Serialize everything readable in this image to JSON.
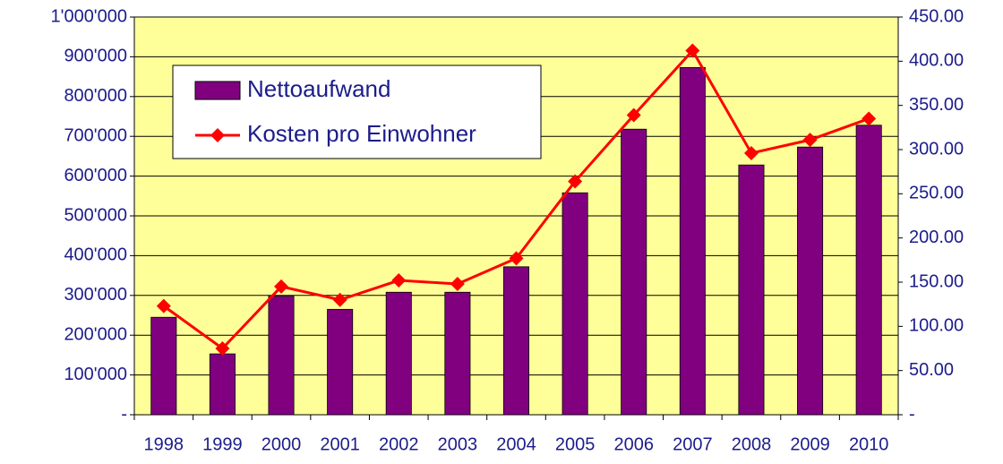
{
  "chart_data": {
    "type": "bar_line",
    "categories": [
      "1998",
      "1999",
      "2000",
      "2001",
      "2002",
      "2003",
      "2004",
      "2005",
      "2006",
      "2007",
      "2008",
      "2009",
      "2010"
    ],
    "series": [
      {
        "name": "Nettoaufwand",
        "type": "bar",
        "color": "#800080",
        "values": [
          245000,
          153000,
          298000,
          265000,
          308000,
          308000,
          372000,
          558000,
          718000,
          873000,
          628000,
          673000,
          728000
        ]
      },
      {
        "name": "Kosten pro Einwohner",
        "type": "line",
        "axis": "y2",
        "color": "#ff0000",
        "values": [
          123,
          75,
          145,
          130,
          152,
          148,
          177,
          264,
          339,
          412,
          296,
          311,
          335
        ]
      }
    ],
    "ylim": [
      0,
      1000000
    ],
    "yticks": [
      {
        "value": 0,
        "label": "-"
      },
      {
        "value": 100000,
        "label": "100'000"
      },
      {
        "value": 200000,
        "label": "200'000"
      },
      {
        "value": 300000,
        "label": "300'000"
      },
      {
        "value": 400000,
        "label": "400'000"
      },
      {
        "value": 500000,
        "label": "500'000"
      },
      {
        "value": 600000,
        "label": "600'000"
      },
      {
        "value": 700000,
        "label": "700'000"
      },
      {
        "value": 800000,
        "label": "800'000"
      },
      {
        "value": 900000,
        "label": "900'000"
      },
      {
        "value": 1000000,
        "label": "1'000'000"
      }
    ],
    "y2lim": [
      0,
      450
    ],
    "y2ticks": [
      {
        "value": 0,
        "label": "-"
      },
      {
        "value": 50,
        "label": "50.00"
      },
      {
        "value": 100,
        "label": "100.00"
      },
      {
        "value": 150,
        "label": "150.00"
      },
      {
        "value": 200,
        "label": "200.00"
      },
      {
        "value": 250,
        "label": "250.00"
      },
      {
        "value": 300,
        "label": "300.00"
      },
      {
        "value": 350,
        "label": "350.00"
      },
      {
        "value": 400,
        "label": "400.00"
      },
      {
        "value": 450,
        "label": "450.00"
      }
    ],
    "grid": true,
    "legend": "upper left",
    "background": "#ffff99"
  }
}
